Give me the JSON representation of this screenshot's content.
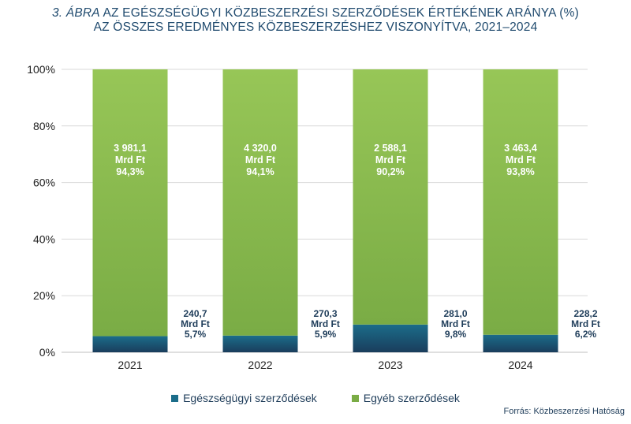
{
  "title": {
    "figure_label": "3. ÁBRA",
    "line1_rest": "AZ EGÉSZSÉGÜGYI KÖZBESZERZÉSI SZERZŐDÉSEK ÉRTÉKÉNEK ARÁNYA (%)",
    "line2": "AZ ÖSSZES EREDMÉNYES KÖZBESZERZÉSHEZ VISZONYÍTVA, 2021–2024"
  },
  "source": "Forrás: Közbeszerzési Hatóság",
  "colors": {
    "health": "#1b6d8a",
    "health_dark": "#1a3d5c",
    "other": "#7aac45",
    "other_light": "#97c657",
    "axis_text": "#222222",
    "label_dark": "#1f3d5a",
    "grid": "#d9d9d9"
  },
  "chart_data": {
    "type": "bar",
    "stacked": true,
    "categories": [
      "2021",
      "2022",
      "2023",
      "2024"
    ],
    "ylim": [
      0,
      100
    ],
    "yticks": [
      "0%",
      "20%",
      "40%",
      "60%",
      "80%",
      "100%"
    ],
    "grid": true,
    "legend_position": "bottom",
    "series": [
      {
        "name": "Egészségügyi szerződések",
        "values": [
          5.7,
          5.9,
          9.8,
          6.2
        ],
        "labels": [
          [
            "240,7",
            "Mrd Ft",
            "5,7%"
          ],
          [
            "270,3",
            "Mrd Ft",
            "5,9%"
          ],
          [
            "281,0",
            "Mrd Ft",
            "9,8%"
          ],
          [
            "228,2",
            "Mrd Ft",
            "6,2%"
          ]
        ]
      },
      {
        "name": "Egyéb szerződések",
        "values": [
          94.3,
          94.1,
          90.2,
          93.8
        ],
        "labels": [
          [
            "3 981,1",
            "Mrd Ft",
            "94,3%"
          ],
          [
            "4 320,0",
            "Mrd Ft",
            "94,1%"
          ],
          [
            "2 588,1",
            "Mrd Ft",
            "90,2%"
          ],
          [
            "3 463,4",
            "Mrd Ft",
            "93,8%"
          ]
        ]
      }
    ]
  }
}
